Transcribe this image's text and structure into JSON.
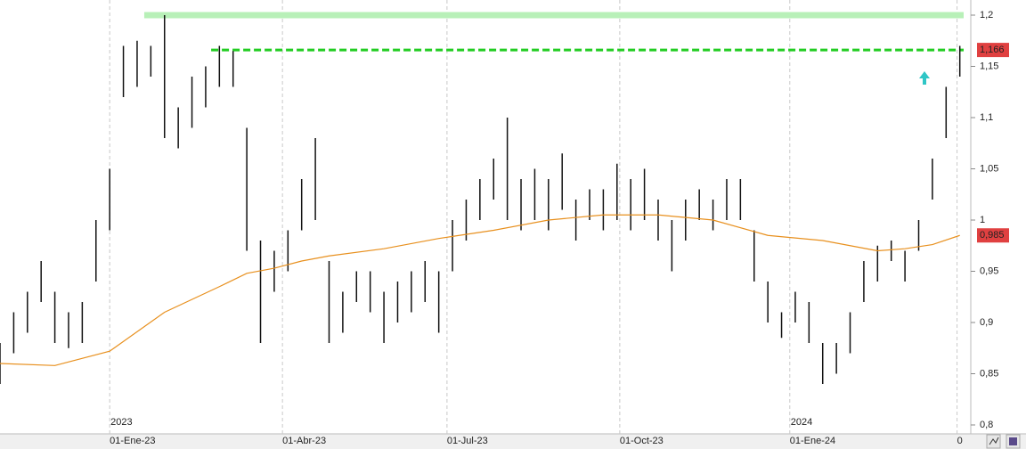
{
  "chart_data": {
    "type": "hilo",
    "x": [
      0,
      5,
      10,
      15,
      20,
      25,
      30,
      35,
      40,
      45,
      50,
      55,
      60,
      65,
      70,
      75,
      80,
      85,
      90,
      95,
      100,
      105,
      110,
      115,
      120,
      125,
      130,
      135,
      140,
      145,
      150,
      155,
      160,
      165,
      170,
      175,
      180,
      185,
      190,
      195,
      200,
      205,
      210,
      215,
      220,
      225,
      230,
      235,
      240,
      245,
      250,
      255,
      260,
      265,
      270,
      275,
      280,
      285,
      290,
      295,
      300,
      305,
      310,
      315,
      320,
      325,
      330,
      335,
      340,
      345,
      350
    ],
    "high": [
      0.88,
      0.91,
      0.93,
      0.96,
      0.93,
      0.91,
      0.92,
      1.0,
      1.05,
      1.17,
      1.175,
      1.17,
      1.2,
      1.11,
      1.14,
      1.15,
      1.17,
      1.165,
      1.09,
      0.98,
      0.97,
      0.99,
      1.04,
      1.08,
      0.96,
      0.93,
      0.95,
      0.95,
      0.93,
      0.94,
      0.95,
      0.96,
      0.95,
      1.0,
      1.02,
      1.04,
      1.06,
      1.1,
      1.04,
      1.05,
      1.04,
      1.065,
      1.02,
      1.03,
      1.03,
      1.055,
      1.04,
      1.05,
      1.02,
      1.0,
      1.02,
      1.03,
      1.02,
      1.04,
      1.04,
      0.99,
      0.94,
      0.91,
      0.93,
      0.92,
      0.88,
      0.88,
      0.91,
      0.96,
      0.975,
      0.98,
      0.97,
      1.0,
      1.06,
      1.13,
      1.17
    ],
    "low": [
      0.84,
      0.87,
      0.89,
      0.92,
      0.88,
      0.875,
      0.88,
      0.94,
      0.99,
      1.12,
      1.13,
      1.14,
      1.08,
      1.07,
      1.09,
      1.11,
      1.13,
      1.13,
      0.97,
      0.88,
      0.93,
      0.95,
      0.99,
      1.0,
      0.88,
      0.89,
      0.92,
      0.91,
      0.88,
      0.9,
      0.91,
      0.92,
      0.89,
      0.95,
      0.98,
      1.0,
      1.02,
      1.0,
      0.99,
      1.0,
      0.99,
      1.01,
      0.98,
      1.0,
      0.99,
      1.0,
      0.99,
      1.0,
      0.98,
      0.95,
      0.98,
      1.0,
      0.99,
      1.0,
      1.0,
      0.94,
      0.9,
      0.885,
      0.9,
      0.88,
      0.84,
      0.85,
      0.87,
      0.92,
      0.94,
      0.96,
      0.94,
      0.97,
      1.02,
      1.08,
      1.14
    ],
    "bar_color": "#111111",
    "ma": {
      "color": "#e8901e",
      "x": [
        0,
        20,
        40,
        60,
        80,
        90,
        100,
        110,
        120,
        140,
        160,
        180,
        200,
        220,
        240,
        260,
        280,
        300,
        320,
        330,
        340,
        350
      ],
      "values": [
        0.86,
        0.858,
        0.872,
        0.91,
        0.935,
        0.948,
        0.953,
        0.96,
        0.965,
        0.972,
        0.982,
        0.99,
        1.0,
        1.005,
        1.005,
        1.0,
        0.985,
        0.98,
        0.97,
        0.972,
        0.976,
        0.985
      ]
    },
    "hlines": [
      {
        "value": 1.2,
        "xstart": 52.6,
        "color": "#b8f0b8",
        "dashed": false
      },
      {
        "value": 1.166,
        "xstart": 77,
        "color": "#22cc22",
        "dashed": true
      }
    ],
    "markers": [
      {
        "value": 1.166,
        "label": "1,166",
        "color": "#e04040"
      },
      {
        "value": 0.985,
        "label": "0,985",
        "color": "#e04040"
      }
    ],
    "xlim": [
      0,
      354
    ],
    "ylim": [
      0.8,
      1.2
    ],
    "yticks": [
      {
        "value": 0.8,
        "label": "0,8"
      },
      {
        "value": 0.85,
        "label": "0,85"
      },
      {
        "value": 0.9,
        "label": "0,9"
      },
      {
        "value": 0.95,
        "label": "0,95"
      },
      1,
      {
        "value": 1.05,
        "label": "1,05"
      },
      {
        "value": 1.1,
        "label": "1,1"
      },
      {
        "value": 1.15,
        "label": "1,15"
      },
      {
        "value": 1.2,
        "label": "1,2"
      }
    ],
    "xticks": [
      {
        "value": 40,
        "label": "01-Ene-23"
      },
      {
        "value": 103,
        "label": "01-Abr-23"
      },
      {
        "value": 163,
        "label": "01-Jul-23"
      },
      {
        "value": 226,
        "label": "01-Oct-23"
      },
      {
        "value": 288,
        "label": "01-Ene-24"
      },
      {
        "value": 349,
        "label": "0"
      }
    ],
    "year_labels": [
      {
        "value": 40,
        "label": "2023"
      },
      {
        "value": 288,
        "label": "2024"
      }
    ]
  }
}
